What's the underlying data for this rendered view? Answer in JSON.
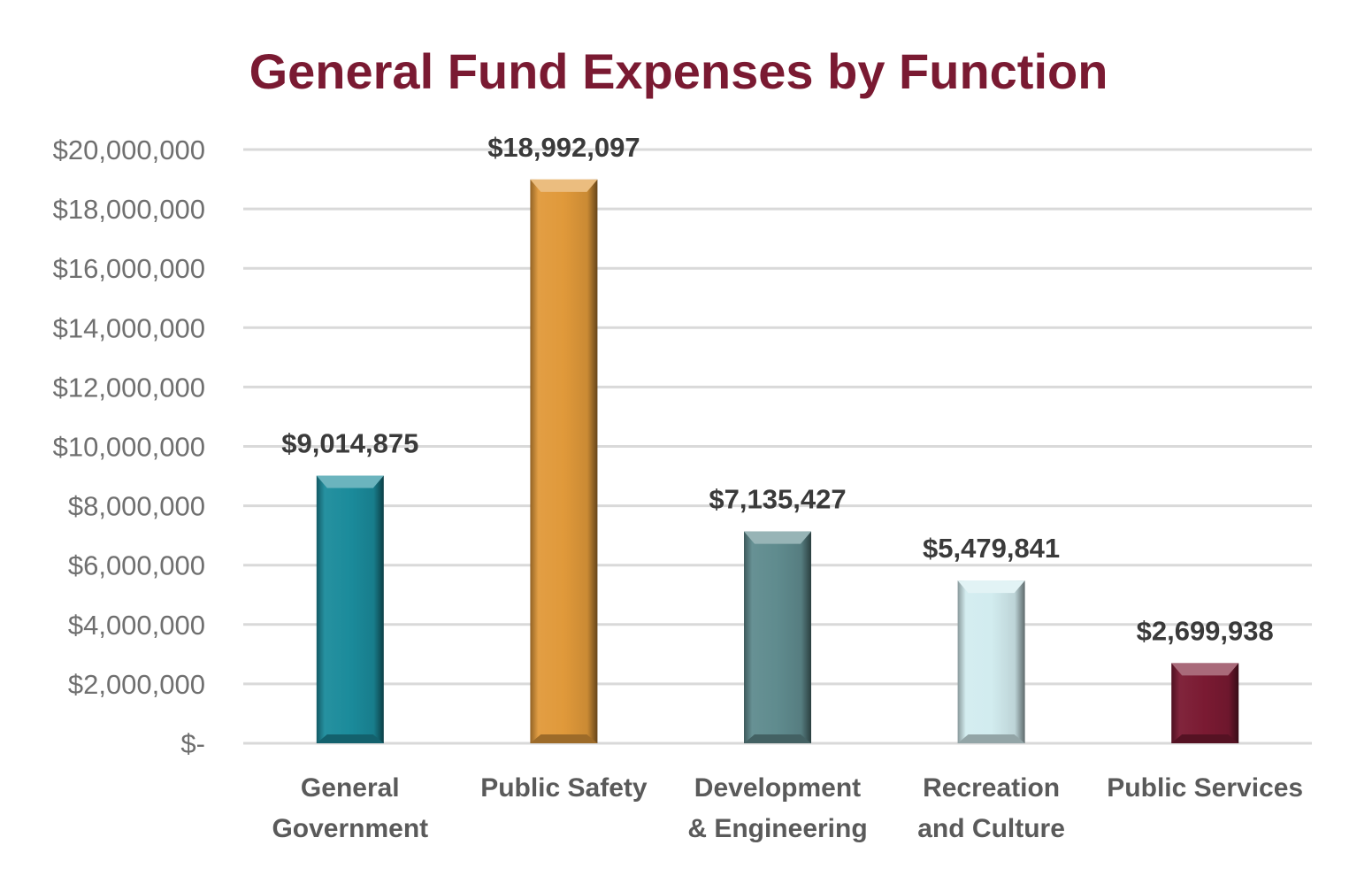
{
  "chart_data": {
    "type": "bar",
    "title": "General Fund Expenses by Function",
    "xlabel": "",
    "ylabel": "",
    "ylim": [
      0,
      20000000
    ],
    "yticks": [
      {
        "value": 0,
        "label": "$-"
      },
      {
        "value": 2000000,
        "label": "$2,000,000"
      },
      {
        "value": 4000000,
        "label": "$4,000,000"
      },
      {
        "value": 6000000,
        "label": "$6,000,000"
      },
      {
        "value": 8000000,
        "label": "$8,000,000"
      },
      {
        "value": 10000000,
        "label": "$10,000,000"
      },
      {
        "value": 12000000,
        "label": "$12,000,000"
      },
      {
        "value": 14000000,
        "label": "$14,000,000"
      },
      {
        "value": 16000000,
        "label": "$16,000,000"
      },
      {
        "value": 18000000,
        "label": "$18,000,000"
      },
      {
        "value": 20000000,
        "label": "$20,000,000"
      }
    ],
    "grid": true,
    "legend": "none",
    "categories": [
      [
        "General",
        "Government"
      ],
      [
        "Public Safety"
      ],
      [
        "Development",
        "& Engineering"
      ],
      [
        "Recreation",
        "and Culture"
      ],
      [
        "Public Services"
      ]
    ],
    "values": [
      9014875,
      18992097,
      7135427,
      5479841,
      2699938
    ],
    "data_labels": [
      "$9,014,875",
      "$18,992,097",
      "$7,135,427",
      "$5,479,841",
      "$2,699,938"
    ],
    "colors": [
      "#1b8b9b",
      "#e0993a",
      "#5f8b8e",
      "#d2ecef",
      "#7a1a32"
    ]
  }
}
